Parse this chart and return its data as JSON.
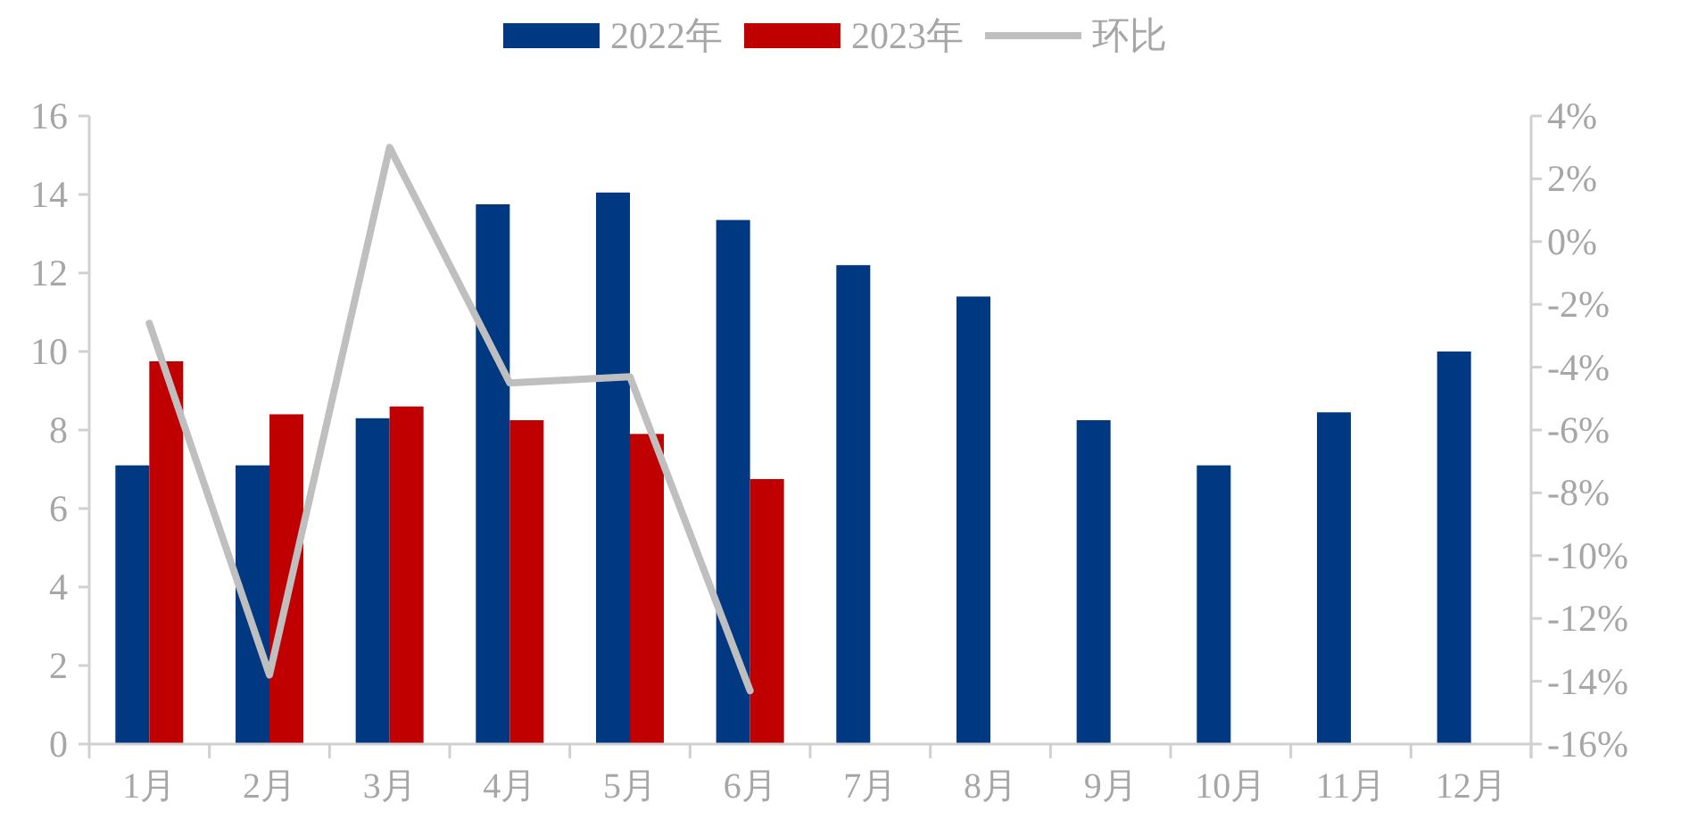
{
  "chart_data": {
    "type": "bar",
    "categories": [
      "1月",
      "2月",
      "3月",
      "4月",
      "5月",
      "6月",
      "7月",
      "8月",
      "9月",
      "10月",
      "11月",
      "12月"
    ],
    "series": [
      {
        "name": "2022年",
        "color": "#003882",
        "values": [
          7.1,
          7.1,
          8.3,
          13.75,
          14.05,
          13.35,
          12.2,
          11.4,
          8.25,
          7.1,
          8.45,
          10.0
        ]
      },
      {
        "name": "2023年",
        "color": "#c00000",
        "values": [
          9.75,
          8.4,
          8.6,
          8.25,
          7.9,
          6.75,
          null,
          null,
          null,
          null,
          null,
          null
        ]
      },
      {
        "name": "环比",
        "type": "line",
        "axis": "y2",
        "color": "#bfbfbf",
        "values": [
          -2.6,
          -13.8,
          3.0,
          -4.5,
          -4.3,
          -14.3,
          null,
          null,
          null,
          null,
          null,
          null
        ]
      }
    ],
    "ylim": [
      0,
      16
    ],
    "yticks": [
      0,
      2,
      4,
      6,
      8,
      10,
      12,
      14,
      16
    ],
    "y2lim": [
      -16,
      4
    ],
    "y2ticks": [
      {
        "value": 4,
        "label": "4%"
      },
      {
        "value": 2,
        "label": "2%"
      },
      {
        "value": 0,
        "label": "0%"
      },
      {
        "value": -2,
        "label": "-2%"
      },
      {
        "value": -4,
        "label": "-4%"
      },
      {
        "value": -6,
        "label": "-6%"
      },
      {
        "value": -8,
        "label": "-8%"
      },
      {
        "value": -10,
        "label": "-10%"
      },
      {
        "value": -12,
        "label": "-12%"
      },
      {
        "value": -14,
        "label": "-14%"
      },
      {
        "value": -16,
        "label": "-16%"
      }
    ],
    "grid": false,
    "legend": "top",
    "marker": "none",
    "line_style": "solid"
  }
}
